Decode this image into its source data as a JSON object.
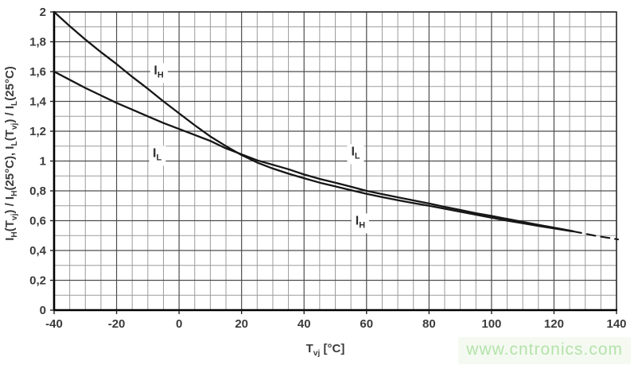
{
  "watermark": {
    "text": "www.cntronics.com",
    "color": "#b5e2ab",
    "bg": "#f4faf1"
  },
  "chart_data": {
    "type": "line",
    "title": "",
    "xlabel": "T_{vj} [°C]",
    "ylabel": "I_{H}(T_{vj}) / I_{H}(25°C), I_{L}(T_{vj}) / I_{L}(25°C)",
    "xlim": [
      -40,
      140
    ],
    "ylim": [
      0,
      2
    ],
    "x_major_step": 20,
    "x_minor_step": 5,
    "y_major_step": 0.2,
    "y_minor_step": 0.1,
    "x_tick_labels": [
      "-40",
      "-20",
      "0",
      "20",
      "40",
      "60",
      "80",
      "100",
      "120",
      "140"
    ],
    "y_tick_labels": [
      "0",
      "0,2",
      "0,4",
      "0,6",
      "0,8",
      "1",
      "1,2",
      "1,4",
      "1,6",
      "1,8",
      "2"
    ],
    "grid": "minor-and-major",
    "legend_position": "none",
    "series": [
      {
        "name": "I_H",
        "style": "solid",
        "points": [
          [
            -40,
            2.0
          ],
          [
            -35,
            1.905
          ],
          [
            -30,
            1.815
          ],
          [
            -25,
            1.73
          ],
          [
            -20,
            1.65
          ],
          [
            -15,
            1.565
          ],
          [
            -10,
            1.485
          ],
          [
            -5,
            1.4
          ],
          [
            0,
            1.32
          ],
          [
            5,
            1.24
          ],
          [
            10,
            1.165
          ],
          [
            15,
            1.1
          ],
          [
            20,
            1.04
          ],
          [
            25,
            0.99
          ],
          [
            30,
            0.95
          ],
          [
            35,
            0.915
          ],
          [
            40,
            0.885
          ],
          [
            45,
            0.855
          ],
          [
            50,
            0.83
          ],
          [
            55,
            0.805
          ],
          [
            60,
            0.78
          ],
          [
            65,
            0.758
          ],
          [
            70,
            0.737
          ],
          [
            75,
            0.718
          ],
          [
            80,
            0.7
          ],
          [
            85,
            0.68
          ],
          [
            90,
            0.66
          ],
          [
            95,
            0.64
          ],
          [
            100,
            0.62
          ],
          [
            105,
            0.6
          ],
          [
            110,
            0.583
          ],
          [
            115,
            0.565
          ],
          [
            120,
            0.548
          ],
          [
            126,
            0.528
          ]
        ]
      },
      {
        "name": "I_L",
        "style": "solid",
        "points": [
          [
            -40,
            1.6
          ],
          [
            -35,
            1.545
          ],
          [
            -30,
            1.49
          ],
          [
            -25,
            1.44
          ],
          [
            -20,
            1.39
          ],
          [
            -15,
            1.345
          ],
          [
            -10,
            1.3
          ],
          [
            -5,
            1.255
          ],
          [
            0,
            1.215
          ],
          [
            5,
            1.175
          ],
          [
            10,
            1.135
          ],
          [
            15,
            1.085
          ],
          [
            20,
            1.045
          ],
          [
            25,
            1.005
          ],
          [
            30,
            0.975
          ],
          [
            35,
            0.945
          ],
          [
            40,
            0.91
          ],
          [
            45,
            0.88
          ],
          [
            50,
            0.855
          ],
          [
            55,
            0.828
          ],
          [
            60,
            0.8
          ],
          [
            65,
            0.778
          ],
          [
            70,
            0.757
          ],
          [
            75,
            0.736
          ],
          [
            80,
            0.715
          ],
          [
            85,
            0.693
          ],
          [
            90,
            0.672
          ],
          [
            95,
            0.65
          ],
          [
            100,
            0.632
          ],
          [
            105,
            0.612
          ],
          [
            110,
            0.592
          ],
          [
            115,
            0.572
          ],
          [
            120,
            0.553
          ],
          [
            126,
            0.53
          ]
        ]
      },
      {
        "name": "extrapolation-dashed",
        "style": "dashed",
        "points": [
          [
            126,
            0.529
          ],
          [
            133,
            0.5
          ],
          [
            140.5,
            0.474
          ]
        ]
      }
    ],
    "annotations": [
      {
        "label": "I_{H}",
        "x": -6.5,
        "y": 1.59,
        "id": "curve-label-ih-left"
      },
      {
        "label": "I_{L}",
        "x": -7,
        "y": 1.035,
        "id": "curve-label-il-left"
      },
      {
        "label": "I_{L}",
        "x": 56.5,
        "y": 1.045,
        "id": "curve-label-il-right"
      },
      {
        "label": "I_{H}",
        "x": 58,
        "y": 0.58,
        "id": "curve-label-ih-right"
      }
    ],
    "colors": {
      "curve": "#161616",
      "grid_minor": "#9b9b9b",
      "grid_major": "#4d4d4d",
      "frame": "#222222",
      "axis": "#000000",
      "tick_text": "#3b3b3b"
    }
  }
}
